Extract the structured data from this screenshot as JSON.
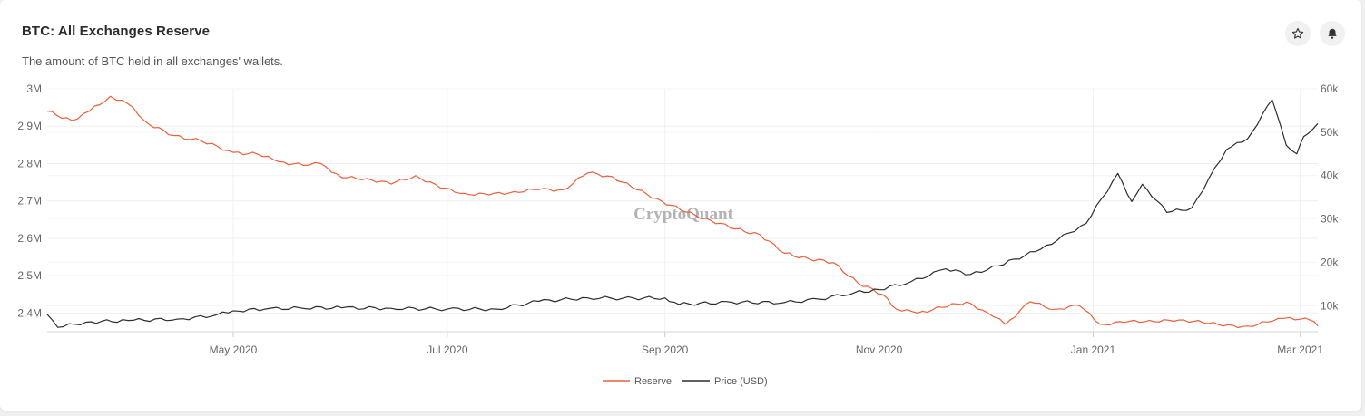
{
  "header": {
    "title": "BTC: All Exchanges Reserve",
    "subtitle": "The amount of BTC held in all exchanges' wallets."
  },
  "actions": [
    {
      "name": "star-button",
      "icon": "star-icon"
    },
    {
      "name": "notification-button",
      "icon": "bell-icon"
    }
  ],
  "watermark": "CryptoQuant",
  "chart_data": {
    "type": "line",
    "title": "BTC: All Exchanges Reserve",
    "subtitle": "The amount of BTC held in all exchanges' wallets.",
    "x_range": [
      "2020-03-09",
      "2021-03-06"
    ],
    "x_ticks": [
      {
        "date": "2020-05-01",
        "label": "May 2020"
      },
      {
        "date": "2020-07-01",
        "label": "Jul 2020"
      },
      {
        "date": "2020-09-01",
        "label": "Sep 2020"
      },
      {
        "date": "2020-11-01",
        "label": "Nov 2020"
      },
      {
        "date": "2021-01-01",
        "label": "Jan 2021"
      },
      {
        "date": "2021-03-01",
        "label": "Mar 2021"
      }
    ],
    "y_left": {
      "min": 2350000,
      "max": 3000000,
      "ticks": [
        {
          "value": 2400000,
          "label": "2.4M"
        },
        {
          "value": 2500000,
          "label": "2.5M"
        },
        {
          "value": 2600000,
          "label": "2.6M"
        },
        {
          "value": 2700000,
          "label": "2.7M"
        },
        {
          "value": 2800000,
          "label": "2.8M"
        },
        {
          "value": 2900000,
          "label": "2.9M"
        },
        {
          "value": 3000000,
          "label": "3M"
        }
      ]
    },
    "y_right": {
      "min": 4000,
      "max": 60000,
      "ticks": [
        {
          "value": 10000,
          "label": "10k"
        },
        {
          "value": 20000,
          "label": "20k"
        },
        {
          "value": 30000,
          "label": "30k"
        },
        {
          "value": 40000,
          "label": "40k"
        },
        {
          "value": 50000,
          "label": "50k"
        },
        {
          "value": 60000,
          "label": "60k"
        }
      ]
    },
    "grid": true,
    "legend_position": "bottom",
    "series": [
      {
        "name": "Reserve",
        "axis": "left",
        "color": "#e8603c",
        "points": [
          [
            "2020-03-09",
            2940000
          ],
          [
            "2020-03-16",
            2915000
          ],
          [
            "2020-03-21",
            2940000
          ],
          [
            "2020-03-27",
            2980000
          ],
          [
            "2020-04-01",
            2960000
          ],
          [
            "2020-04-07",
            2905000
          ],
          [
            "2020-04-14",
            2875000
          ],
          [
            "2020-04-22",
            2860000
          ],
          [
            "2020-05-01",
            2830000
          ],
          [
            "2020-05-08",
            2825000
          ],
          [
            "2020-05-14",
            2805000
          ],
          [
            "2020-05-21",
            2795000
          ],
          [
            "2020-05-26",
            2800000
          ],
          [
            "2020-06-01",
            2762000
          ],
          [
            "2020-06-08",
            2760000
          ],
          [
            "2020-06-15",
            2745000
          ],
          [
            "2020-06-22",
            2768000
          ],
          [
            "2020-06-29",
            2735000
          ],
          [
            "2020-07-06",
            2720000
          ],
          [
            "2020-07-13",
            2716000
          ],
          [
            "2020-07-20",
            2725000
          ],
          [
            "2020-07-27",
            2730000
          ],
          [
            "2020-08-03",
            2730000
          ],
          [
            "2020-08-10",
            2775000
          ],
          [
            "2020-08-17",
            2765000
          ],
          [
            "2020-08-24",
            2730000
          ],
          [
            "2020-08-31",
            2700000
          ],
          [
            "2020-09-07",
            2670000
          ],
          [
            "2020-09-14",
            2648000
          ],
          [
            "2020-09-21",
            2625000
          ],
          [
            "2020-09-28",
            2610000
          ],
          [
            "2020-10-05",
            2560000
          ],
          [
            "2020-10-12",
            2545000
          ],
          [
            "2020-10-19",
            2535000
          ],
          [
            "2020-10-26",
            2480000
          ],
          [
            "2020-11-02",
            2450000
          ],
          [
            "2020-11-06",
            2410000
          ],
          [
            "2020-11-12",
            2400000
          ],
          [
            "2020-11-19",
            2415000
          ],
          [
            "2020-11-26",
            2430000
          ],
          [
            "2020-12-02",
            2400000
          ],
          [
            "2020-12-07",
            2370000
          ],
          [
            "2020-12-14",
            2430000
          ],
          [
            "2020-12-21",
            2410000
          ],
          [
            "2020-12-28",
            2420000
          ],
          [
            "2021-01-03",
            2370000
          ],
          [
            "2021-01-10",
            2375000
          ],
          [
            "2021-01-17",
            2380000
          ],
          [
            "2021-01-24",
            2378000
          ],
          [
            "2021-01-31",
            2380000
          ],
          [
            "2021-02-07",
            2365000
          ],
          [
            "2021-02-14",
            2365000
          ],
          [
            "2021-02-21",
            2378000
          ],
          [
            "2021-02-26",
            2388000
          ],
          [
            "2021-03-04",
            2380000
          ],
          [
            "2021-03-06",
            2365000
          ]
        ]
      },
      {
        "name": "Price (USD)",
        "axis": "right",
        "color": "#2d2d2d",
        "points": [
          [
            "2020-03-09",
            8000
          ],
          [
            "2020-03-12",
            5000
          ],
          [
            "2020-03-20",
            6200
          ],
          [
            "2020-04-01",
            6600
          ],
          [
            "2020-04-15",
            6900
          ],
          [
            "2020-04-25",
            7600
          ],
          [
            "2020-05-01",
            8800
          ],
          [
            "2020-05-10",
            9200
          ],
          [
            "2020-05-20",
            9500
          ],
          [
            "2020-06-01",
            9500
          ],
          [
            "2020-06-15",
            9400
          ],
          [
            "2020-07-01",
            9200
          ],
          [
            "2020-07-15",
            9200
          ],
          [
            "2020-07-27",
            11000
          ],
          [
            "2020-08-10",
            11800
          ],
          [
            "2020-08-20",
            11700
          ],
          [
            "2020-09-01",
            11800
          ],
          [
            "2020-09-05",
            10300
          ],
          [
            "2020-09-20",
            10800
          ],
          [
            "2020-10-05",
            10700
          ],
          [
            "2020-10-15",
            11500
          ],
          [
            "2020-10-25",
            13000
          ],
          [
            "2020-11-01",
            13700
          ],
          [
            "2020-11-10",
            15500
          ],
          [
            "2020-11-20",
            18500
          ],
          [
            "2020-11-27",
            17200
          ],
          [
            "2020-12-05",
            19200
          ],
          [
            "2020-12-17",
            23000
          ],
          [
            "2020-12-30",
            29000
          ],
          [
            "2021-01-08",
            40500
          ],
          [
            "2021-01-12",
            34000
          ],
          [
            "2021-01-15",
            38000
          ],
          [
            "2021-01-22",
            31500
          ],
          [
            "2021-01-29",
            32500
          ],
          [
            "2021-02-08",
            46000
          ],
          [
            "2021-02-14",
            48500
          ],
          [
            "2021-02-21",
            57500
          ],
          [
            "2021-02-25",
            47000
          ],
          [
            "2021-02-28",
            45000
          ],
          [
            "2021-03-02",
            49000
          ],
          [
            "2021-03-06",
            52000
          ]
        ]
      }
    ]
  }
}
